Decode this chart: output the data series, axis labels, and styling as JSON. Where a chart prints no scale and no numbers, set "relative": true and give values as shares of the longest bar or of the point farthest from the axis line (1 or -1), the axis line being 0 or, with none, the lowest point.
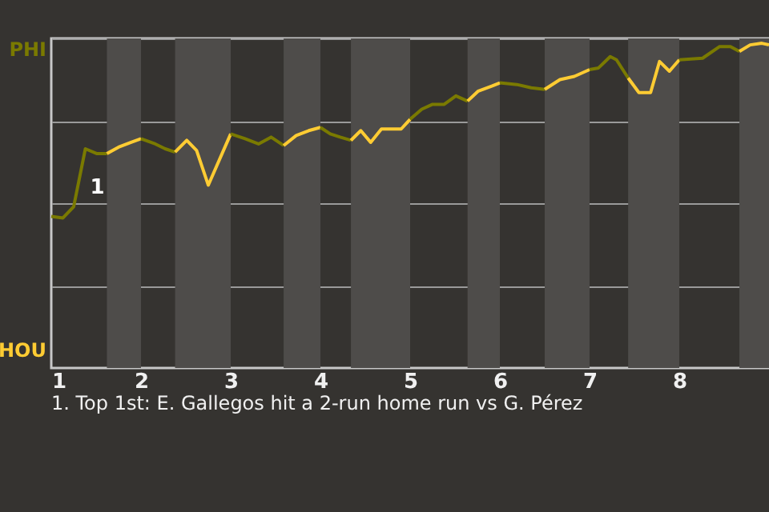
{
  "chart_data": {
    "type": "line",
    "relative": true,
    "xlim": [
      1,
      9
    ],
    "xticks": [
      1,
      2,
      3,
      4,
      5,
      6,
      7,
      8
    ],
    "grid": "y",
    "marker": "none",
    "line_style": "solid",
    "series": [
      {
        "name": "PHI",
        "color": "#7a7a00",
        "x": [
          1,
          1.13,
          1.25,
          1.38,
          1.51,
          1.62
        ],
        "values": [
          0.467,
          0.462,
          0.497,
          0.675,
          0.66,
          0.66
        ]
      },
      {
        "name": "HOU",
        "color": "#ffcc33",
        "x": [
          1.62,
          1.75,
          1.89,
          2
        ],
        "values": [
          0.66,
          0.68,
          0.695,
          0.706
        ]
      },
      {
        "color": "#7a7a00",
        "x": [
          2,
          2.16,
          2.27,
          2.38
        ],
        "values": [
          0.706,
          0.69,
          0.675,
          0.665
        ]
      },
      {
        "color": "#ffcc33",
        "x": [
          2.38,
          2.51,
          2.62,
          2.75,
          3
        ],
        "values": [
          0.665,
          0.701,
          0.67,
          0.563,
          0.721
        ]
      },
      {
        "color": "#7a7a00",
        "x": [
          3,
          3.16,
          3.31,
          3.45,
          3.59
        ],
        "values": [
          0.721,
          0.706,
          0.69,
          0.711,
          0.685
        ]
      },
      {
        "color": "#ffcc33",
        "x": [
          3.59,
          3.73,
          3.87,
          4
        ],
        "values": [
          0.685,
          0.716,
          0.731,
          0.741
        ]
      },
      {
        "color": "#7a7a00",
        "x": [
          4,
          4.11,
          4.22,
          4.34
        ],
        "values": [
          0.741,
          0.721,
          0.711,
          0.701
        ]
      },
      {
        "color": "#ffcc33",
        "x": [
          4.34,
          4.45,
          4.56,
          4.68,
          4.9,
          5
        ],
        "values": [
          0.701,
          0.731,
          0.695,
          0.736,
          0.736,
          0.766
        ]
      },
      {
        "color": "#7a7a00",
        "x": [
          5,
          5.13,
          5.25,
          5.38,
          5.51,
          5.64
        ],
        "values": [
          0.766,
          0.797,
          0.812,
          0.812,
          0.838,
          0.822
        ]
      },
      {
        "color": "#ffcc33",
        "x": [
          5.64,
          5.76,
          5.91,
          6
        ],
        "values": [
          0.822,
          0.853,
          0.868,
          0.878
        ]
      },
      {
        "color": "#7a7a00",
        "x": [
          6,
          6.19,
          6.35,
          6.5
        ],
        "values": [
          0.878,
          0.873,
          0.863,
          0.858
        ]
      },
      {
        "color": "#ffcc33",
        "x": [
          6.5,
          6.67,
          6.83,
          7
        ],
        "values": [
          0.858,
          0.888,
          0.898,
          0.919
        ]
      },
      {
        "color": "#7a7a00",
        "x": [
          7,
          7.1,
          7.23,
          7.3,
          7.43
        ],
        "values": [
          0.919,
          0.924,
          0.959,
          0.949,
          0.893
        ]
      },
      {
        "color": "#ffcc33",
        "x": [
          7.43,
          7.55,
          7.68,
          7.78,
          7.89,
          8
        ],
        "values": [
          0.893,
          0.848,
          0.848,
          0.944,
          0.914,
          0.949
        ]
      },
      {
        "color": "#7a7a00",
        "x": [
          8,
          8.26,
          8.45,
          8.57,
          8.67
        ],
        "values": [
          0.949,
          0.954,
          0.99,
          0.99,
          0.975
        ]
      },
      {
        "color": "#ffcc33",
        "x": [
          8.67,
          8.79,
          8.92,
          9
        ],
        "values": [
          0.975,
          0.995,
          1,
          0.995
        ]
      }
    ],
    "bands": [
      {
        "axis": "x",
        "from": 1.62,
        "to": 2,
        "color": "#4e4c4a"
      },
      {
        "axis": "x",
        "from": 2.38,
        "to": 3,
        "color": "#4e4c4a"
      },
      {
        "axis": "x",
        "from": 3.59,
        "to": 4,
        "color": "#4e4c4a"
      },
      {
        "axis": "x",
        "from": 4.34,
        "to": 5,
        "color": "#4e4c4a"
      },
      {
        "axis": "x",
        "from": 5.64,
        "to": 6,
        "color": "#4e4c4a"
      },
      {
        "axis": "x",
        "from": 6.5,
        "to": 7,
        "color": "#4e4c4a"
      },
      {
        "axis": "x",
        "from": 7.43,
        "to": 8,
        "color": "#4e4c4a"
      },
      {
        "axis": "x",
        "from": 8.67,
        "to": 9,
        "color": "#4e4c4a"
      }
    ],
    "annotations": [
      {
        "text": "1",
        "x": 1.38,
        "y": 0.558
      },
      "1. Top 1st: E. Gallegos hit a 2-run home run vs G. Pérez"
    ]
  }
}
